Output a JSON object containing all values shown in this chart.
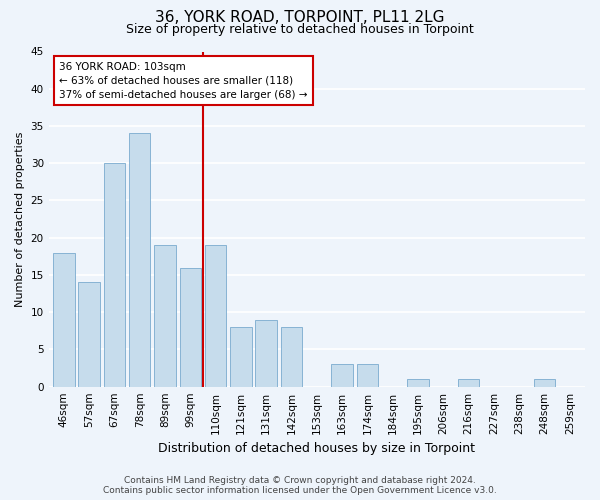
{
  "title": "36, YORK ROAD, TORPOINT, PL11 2LG",
  "subtitle": "Size of property relative to detached houses in Torpoint",
  "xlabel": "Distribution of detached houses by size in Torpoint",
  "ylabel": "Number of detached properties",
  "bar_labels": [
    "46sqm",
    "57sqm",
    "67sqm",
    "78sqm",
    "89sqm",
    "99sqm",
    "110sqm",
    "121sqm",
    "131sqm",
    "142sqm",
    "153sqm",
    "163sqm",
    "174sqm",
    "184sqm",
    "195sqm",
    "206sqm",
    "216sqm",
    "227sqm",
    "238sqm",
    "248sqm",
    "259sqm"
  ],
  "bar_values": [
    18,
    14,
    30,
    34,
    19,
    16,
    19,
    8,
    9,
    8,
    0,
    3,
    3,
    0,
    1,
    0,
    1,
    0,
    0,
    1,
    0
  ],
  "bar_color": "#c6dcec",
  "bar_edge_color": "#7aabcf",
  "ylim": [
    0,
    45
  ],
  "yticks": [
    0,
    5,
    10,
    15,
    20,
    25,
    30,
    35,
    40,
    45
  ],
  "property_line_color": "#cc0000",
  "annotation_line1": "36 YORK ROAD: 103sqm",
  "annotation_line2": "← 63% of detached houses are smaller (118)",
  "annotation_line3": "37% of semi-detached houses are larger (68) →",
  "footer_line1": "Contains HM Land Registry data © Crown copyright and database right 2024.",
  "footer_line2": "Contains public sector information licensed under the Open Government Licence v3.0.",
  "background_color": "#eef4fb",
  "grid_color": "#ffffff",
  "title_fontsize": 11,
  "subtitle_fontsize": 9,
  "xlabel_fontsize": 9,
  "ylabel_fontsize": 8,
  "tick_fontsize": 7.5,
  "footer_fontsize": 6.5,
  "annot_fontsize": 7.5
}
